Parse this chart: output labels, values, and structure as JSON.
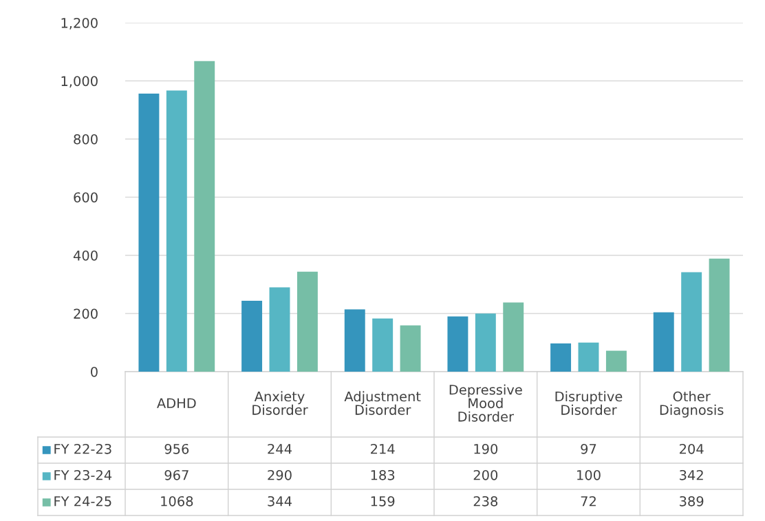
{
  "chart_data": {
    "type": "bar",
    "categories": [
      "ADHD",
      "Anxiety Disorder",
      "Adjustment Disorder",
      "Depressive Mood Disorder",
      "Disruptive Disorder",
      "Other Diagnosis"
    ],
    "series": [
      {
        "name": "FY 22-23",
        "color": "#3595bd",
        "values": [
          956,
          244,
          214,
          190,
          97,
          204
        ]
      },
      {
        "name": "FY 23-24",
        "color": "#56b6c4",
        "values": [
          967,
          290,
          183,
          200,
          100,
          342
        ]
      },
      {
        "name": "FY 24-25",
        "color": "#76bea6",
        "values": [
          1068,
          344,
          159,
          238,
          72,
          389
        ]
      }
    ],
    "ylim": [
      0,
      1200
    ],
    "yticks": [
      0,
      200,
      400,
      600,
      800,
      {
        "value": 1000,
        "label": "1,000"
      },
      {
        "value": 1200,
        "label": "1,200"
      }
    ],
    "grid": "y",
    "data_labels": true,
    "legend": "bottom"
  }
}
